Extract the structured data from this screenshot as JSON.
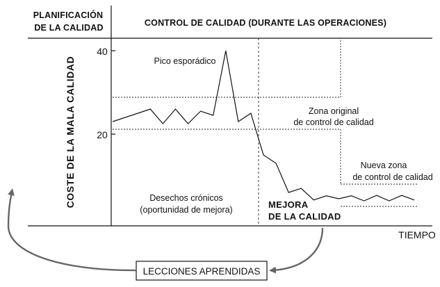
{
  "header": {
    "left_line1": "PLANIFICACIÓN",
    "left_line2": "DE LA CALIDAD",
    "right": "CONTROL DE CALIDAD (DURANTE LAS OPERACIONES)"
  },
  "chart_data": {
    "type": "line",
    "ylabel": "COSTE DE LA MALA CALIDAD",
    "xlabel": "TIEMPO",
    "y_ticks": [
      "40",
      "20"
    ],
    "series": [
      {
        "values": [
          23,
          24,
          25,
          26,
          22.5,
          26,
          22.5,
          25.5,
          24.5,
          40,
          23,
          25,
          15,
          13,
          6,
          7,
          4.2,
          5.2,
          4.5,
          5.2,
          4,
          5.3,
          4,
          5.3,
          4.2
        ]
      }
    ]
  },
  "annotations": {
    "sporadic_peak": "Pico esporádico",
    "original_zone_line1": "Zona original",
    "original_zone_line2": "de control de calidad",
    "new_zone_line1": "Nueva zona",
    "new_zone_line2": "de control de calidad",
    "chronic_waste_line1": "Desechos crónicos",
    "chronic_waste_line2": "(oportunidad de mejora)",
    "improvement_line1": "MEJORA",
    "improvement_line2": "DE LA CALIDAD"
  },
  "lessons_box": "LECCIONES APRENDIDAS",
  "colors": {
    "line": "#111111",
    "arrow": "#666666",
    "background": "#ffffff"
  }
}
